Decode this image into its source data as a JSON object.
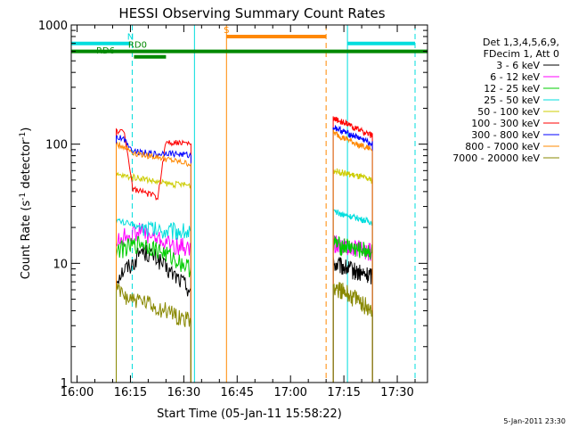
{
  "chart_data": {
    "type": "line",
    "title": "HESSI Observing Summary Count Rates",
    "xlabel": "Start Time (05-Jan-11 15:58:22)",
    "ylabel_main": "Count Rate (s",
    "ylabel_sup1": "-1",
    "ylabel_mid": " detector",
    "ylabel_sup2": "-1",
    "ylabel_end": ")",
    "y_scale": "log",
    "ylim": [
      1,
      1000
    ],
    "xlim": [
      "15:58:22",
      "17:38:30"
    ],
    "x_ticks": [
      "16:00",
      "16:15",
      "16:30",
      "16:45",
      "17:00",
      "17:15",
      "17:30"
    ],
    "y_ticks": [
      "1",
      "10",
      "100",
      "1000"
    ],
    "legend_position": "right",
    "legend_header": [
      "Det 1,3,4,5,6,9,",
      "FDecim 1, Att 0"
    ],
    "series": [
      {
        "name": "3 - 6 keV",
        "color": "#000000",
        "seg1": {
          "start": "16:11",
          "end": "16:32",
          "values": [
            7.5,
            9,
            10,
            13,
            12,
            11,
            9,
            8,
            7,
            6
          ]
        },
        "seg2": {
          "start": "17:12",
          "end": "17:23",
          "values": [
            10,
            9.5,
            9,
            8.5,
            8,
            8
          ]
        }
      },
      {
        "name": "6 - 12 keV",
        "color": "#ff00ff",
        "seg1": {
          "start": "16:11",
          "end": "16:32",
          "values": [
            15,
            17,
            18,
            19,
            17,
            16,
            15,
            14,
            14,
            13
          ]
        },
        "seg2": {
          "start": "17:12",
          "end": "17:23",
          "values": [
            15,
            14,
            14,
            13.5,
            13,
            12.5
          ]
        }
      },
      {
        "name": "12 - 25 keV",
        "color": "#00cc00",
        "seg1": {
          "start": "16:11",
          "end": "16:32",
          "values": [
            13,
            13.5,
            14,
            15,
            14,
            13,
            12,
            11,
            10,
            9
          ]
        },
        "seg2": {
          "start": "17:12",
          "end": "17:23",
          "values": [
            15,
            14,
            14,
            13,
            13,
            12.5
          ]
        }
      },
      {
        "name": "25 - 50 keV",
        "color": "#00dddd",
        "seg1": {
          "start": "16:11",
          "end": "16:32",
          "values": [
            23,
            22,
            21,
            20,
            20,
            19,
            19,
            19,
            19,
            18
          ]
        },
        "seg2": {
          "start": "17:12",
          "end": "17:23",
          "values": [
            27,
            26,
            25,
            24,
            23,
            22
          ]
        }
      },
      {
        "name": "50 - 100 keV",
        "color": "#cccc00",
        "seg1": {
          "start": "16:11",
          "end": "16:32",
          "values": [
            55,
            54,
            53,
            52,
            50,
            48,
            47,
            46,
            46,
            45
          ]
        },
        "seg2": {
          "start": "17:12",
          "end": "17:23",
          "values": [
            60,
            58,
            56,
            54,
            52,
            50
          ]
        }
      },
      {
        "name": "100 - 300 keV",
        "color": "#ff0000",
        "seg1": {
          "start": "16:11",
          "end": "16:32",
          "values": [
            130,
            125,
            42,
            40,
            38,
            36,
            105,
            103,
            102,
            100
          ]
        },
        "seg2": {
          "start": "17:12",
          "end": "17:23",
          "values": [
            165,
            155,
            145,
            135,
            125,
            118
          ]
        }
      },
      {
        "name": "300 - 800 keV",
        "color": "#0000ff",
        "seg1": {
          "start": "16:11",
          "end": "16:32",
          "values": [
            115,
            110,
            88,
            86,
            84,
            82,
            85,
            83,
            82,
            80
          ]
        },
        "seg2": {
          "start": "17:12",
          "end": "17:23",
          "values": [
            140,
            130,
            122,
            115,
            108,
            100
          ]
        }
      },
      {
        "name": "800 - 7000 keV",
        "color": "#ff8800",
        "seg1": {
          "start": "16:11",
          "end": "16:32",
          "values": [
            100,
            95,
            85,
            82,
            80,
            78,
            75,
            72,
            70,
            68
          ]
        },
        "seg2": {
          "start": "17:12",
          "end": "17:23",
          "values": [
            125,
            115,
            108,
            100,
            95,
            90
          ]
        }
      },
      {
        "name": "7000 - 20000 keV",
        "color": "#888800",
        "seg1": {
          "start": "16:11",
          "end": "16:32",
          "values": [
            6,
            5.5,
            5,
            4.8,
            4.5,
            4.2,
            4,
            3.8,
            3.5,
            3.3
          ]
        },
        "seg2": {
          "start": "17:12",
          "end": "17:23",
          "values": [
            6.5,
            6,
            5.5,
            5,
            4.5,
            4
          ]
        }
      }
    ],
    "state_bars": [
      {
        "label": "N",
        "color": "#00dddd",
        "level": 700,
        "segments": [
          [
            "15:58:22",
            "16:15"
          ],
          [
            "17:16",
            "17:35"
          ]
        ],
        "label_at": "16:15"
      },
      {
        "label": "RD0",
        "color": "#008800",
        "level": 600,
        "segments": [
          [
            "15:58:22",
            "17:38:30"
          ]
        ],
        "label_at": "16:17"
      },
      {
        "label": "RD6",
        "color": "#008800",
        "level": 540,
        "segments": [
          [
            "16:16",
            "16:25"
          ]
        ],
        "label_at": "16:08"
      },
      {
        "label": "S",
        "color": "#ff8800",
        "level": 800,
        "segments": [
          [
            "16:42",
            "17:10"
          ]
        ],
        "label_at": "16:42"
      }
    ],
    "vertical_markers": [
      {
        "time": "15:58:22",
        "color": "#00dddd",
        "style": "solid"
      },
      {
        "time": "16:15:30",
        "color": "#00dddd",
        "style": "dashed"
      },
      {
        "time": "16:33",
        "color": "#00dddd",
        "style": "solid"
      },
      {
        "time": "16:42",
        "color": "#ff8800",
        "style": "solid"
      },
      {
        "time": "17:10",
        "color": "#ff8800",
        "style": "dashed"
      },
      {
        "time": "17:16",
        "color": "#00dddd",
        "style": "solid"
      },
      {
        "time": "17:35",
        "color": "#00dddd",
        "style": "dashed"
      }
    ]
  },
  "footer_stamp": "5-Jan-2011 23:30"
}
